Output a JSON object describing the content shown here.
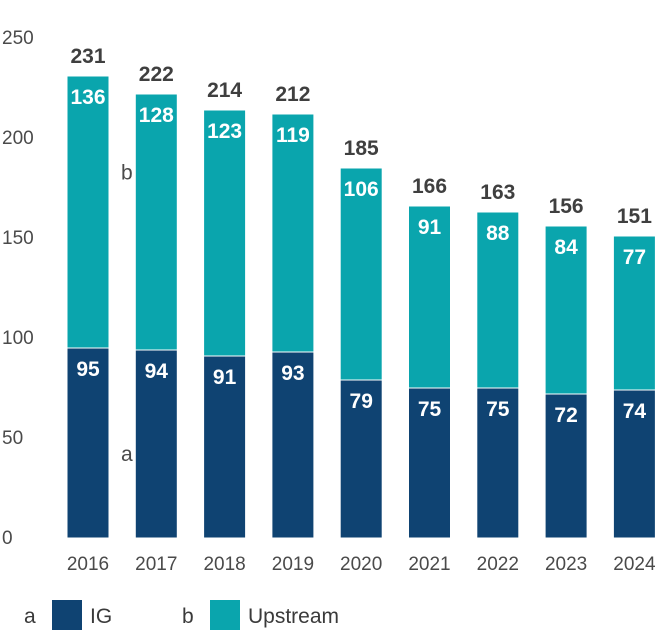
{
  "chart_data": {
    "type": "bar",
    "stacked": true,
    "title": "",
    "xlabel": "",
    "ylabel": "",
    "ylim": [
      0,
      250
    ],
    "yticks": [
      0,
      50,
      100,
      150,
      200,
      250
    ],
    "categories": [
      "2016",
      "2017",
      "2018",
      "2019",
      "2020",
      "2021",
      "2022",
      "2023",
      "2024"
    ],
    "series": [
      {
        "key": "a",
        "name": "IG",
        "color": "#0f4372",
        "values": [
          95,
          94,
          91,
          93,
          79,
          75,
          75,
          72,
          74
        ]
      },
      {
        "key": "b",
        "name": "Upstream",
        "color": "#0aa5ad",
        "values": [
          136,
          128,
          123,
          119,
          106,
          91,
          88,
          84,
          77
        ]
      }
    ],
    "totals": [
      231,
      222,
      214,
      212,
      185,
      166,
      163,
      156,
      151
    ],
    "annotations": [
      {
        "text": "a",
        "series": "IG"
      },
      {
        "text": "b",
        "series": "Upstream"
      }
    ],
    "legend": {
      "position": "bottom-left",
      "items": [
        {
          "key": "a",
          "label": "IG",
          "color": "#0f4372"
        },
        {
          "key": "b",
          "label": "Upstream",
          "color": "#0aa5ad"
        }
      ]
    }
  }
}
